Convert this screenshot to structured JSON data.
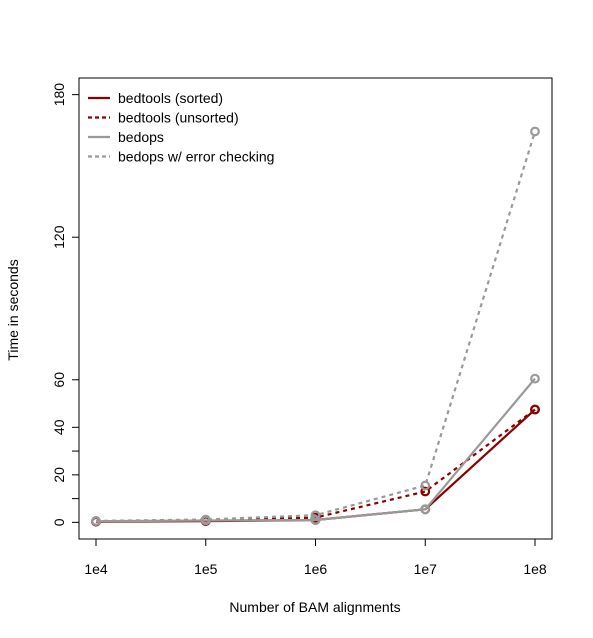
{
  "chart_data": {
    "type": "line",
    "title": "",
    "xlabel": "Number of BAM alignments",
    "ylabel": "Time in seconds",
    "x_scale": "log10",
    "x": [
      10000,
      100000,
      1000000,
      10000000,
      100000000
    ],
    "x_tick_labels": [
      "1e4",
      "1e5",
      "1e6",
      "1e7",
      "1e8"
    ],
    "y_ticks": [
      0,
      20,
      40,
      60,
      120,
      180
    ],
    "y_minor_ticks": [
      10,
      30
    ],
    "ylim": [
      -7,
      187
    ],
    "grid": false,
    "legend_position": "top-left",
    "series": [
      {
        "name": "bedtools (sorted)",
        "color": "#8b0000",
        "style": "solid",
        "values": [
          0.3,
          0.5,
          1.0,
          5.5,
          47.5
        ]
      },
      {
        "name": "bedtools (unsorted)",
        "color": "#8b0000",
        "style": "dashed",
        "values": [
          0.4,
          0.8,
          2.0,
          13.0,
          47.5
        ]
      },
      {
        "name": "bedops",
        "color": "#999999",
        "style": "solid",
        "values": [
          0.5,
          0.8,
          1.0,
          5.5,
          60.5
        ]
      },
      {
        "name": "bedops w/ error checking",
        "color": "#999999",
        "style": "dashed",
        "values": [
          0.6,
          1.2,
          3.0,
          15.5,
          164.5
        ]
      }
    ]
  }
}
